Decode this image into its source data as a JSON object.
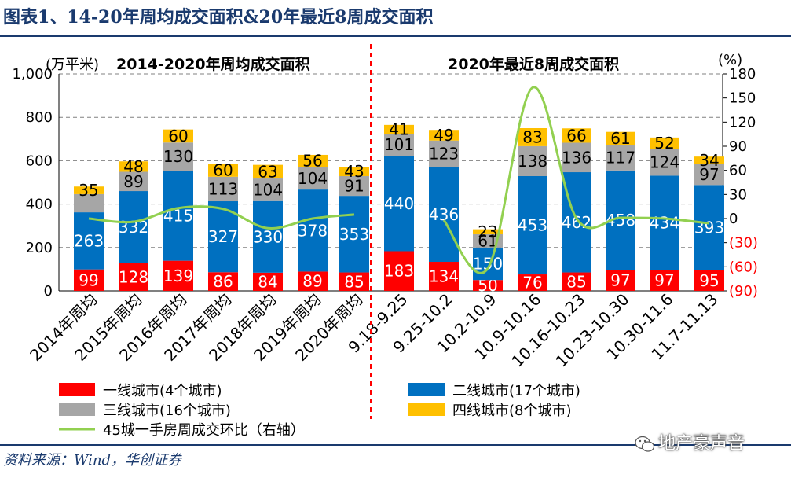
{
  "page": {
    "title": "图表1、14-20年周均成交面积&20年最近8周成交面积",
    "source": "资料来源：Wind，华创证券",
    "watermark": "地产豪声音"
  },
  "colors": {
    "tier1": "#ff0000",
    "tier2": "#0070c0",
    "tier3": "#a6a6a6",
    "tier4": "#ffc000",
    "line": "#92d050",
    "divider": "#ff0000",
    "negative_axis": "#ff0000",
    "grid": "#808080"
  },
  "chart_data": {
    "type": "bar",
    "stacked": true,
    "left_axis": {
      "unit_label": "(万平米)",
      "ylim": [
        0,
        1000
      ],
      "ticks": [
        "0",
        "200",
        "400",
        "600",
        "800",
        "1,000"
      ]
    },
    "right_axis": {
      "unit_label": "(%)",
      "ylim": [
        -90,
        180
      ],
      "ticks": [
        "(90)",
        "(60)",
        "(30)",
        "0",
        "30",
        "60",
        "90",
        "120",
        "150",
        "180"
      ]
    },
    "panel_left_title": "2014-2020年周均成交面积",
    "panel_right_title": "2020年最近8周成交面积",
    "categories": [
      "2014年周均",
      "2015年周均",
      "2016年周均",
      "2017年周均",
      "2018年周均",
      "2019年周均",
      "2020年周均",
      "9.18-9.25",
      "9.25-10.2",
      "10.2-10.9",
      "10.9-10.16",
      "10.16-10.23",
      "10.23-10.30",
      "10.30-11.6",
      "11.7-11.13"
    ],
    "series": [
      {
        "name": "一线城市(4个城市)",
        "key": "tier1",
        "values": [
          99,
          128,
          139,
          86,
          84,
          89,
          85,
          183,
          134,
          50,
          76,
          85,
          97,
          97,
          95
        ]
      },
      {
        "name": "二线城市(17个城市)",
        "key": "tier2",
        "values": [
          263,
          332,
          415,
          327,
          330,
          378,
          353,
          440,
          436,
          150,
          453,
          462,
          458,
          434,
          393
        ]
      },
      {
        "name": "三线城市(16个城市)",
        "key": "tier3",
        "values": [
          84,
          89,
          130,
          113,
          104,
          104,
          91,
          101,
          123,
          61,
          138,
          136,
          117,
          124,
          97
        ]
      },
      {
        "name": "四线城市(8个城市)",
        "key": "tier4",
        "values": [
          35,
          48,
          60,
          60,
          63,
          56,
          43,
          41,
          49,
          23,
          83,
          66,
          61,
          52,
          34
        ]
      }
    ],
    "tier3_value_labels": [
      "",
      "89",
      "130",
      "113",
      "104",
      "104",
      "91",
      "101",
      "123",
      "61",
      "138",
      "136",
      "117",
      "124",
      "97"
    ],
    "line_series": {
      "name": "45城一手房周成交环比（右轴）",
      "segments": [
        {
          "indices": [
            0,
            1,
            2,
            3,
            4,
            5,
            6
          ],
          "values": [
            0,
            -4,
            13,
            12,
            -12,
            0,
            5
          ]
        },
        {
          "indices": [
            8,
            9,
            10,
            11,
            12,
            13,
            14
          ],
          "values": [
            -2,
            -62,
            163,
            0,
            1,
            0,
            -6
          ]
        }
      ]
    },
    "legend": {
      "items": [
        {
          "label": "一线城市(4个城市)",
          "key": "tier1",
          "kind": "box"
        },
        {
          "label": "二线城市(17个城市)",
          "key": "tier2",
          "kind": "box"
        },
        {
          "label": "三线城市(16个城市)",
          "key": "tier3",
          "kind": "box"
        },
        {
          "label": "四线城市(8个城市)",
          "key": "tier4",
          "kind": "box"
        },
        {
          "label": "45城一手房周成交环比（右轴）",
          "key": "line",
          "kind": "line"
        }
      ]
    }
  }
}
